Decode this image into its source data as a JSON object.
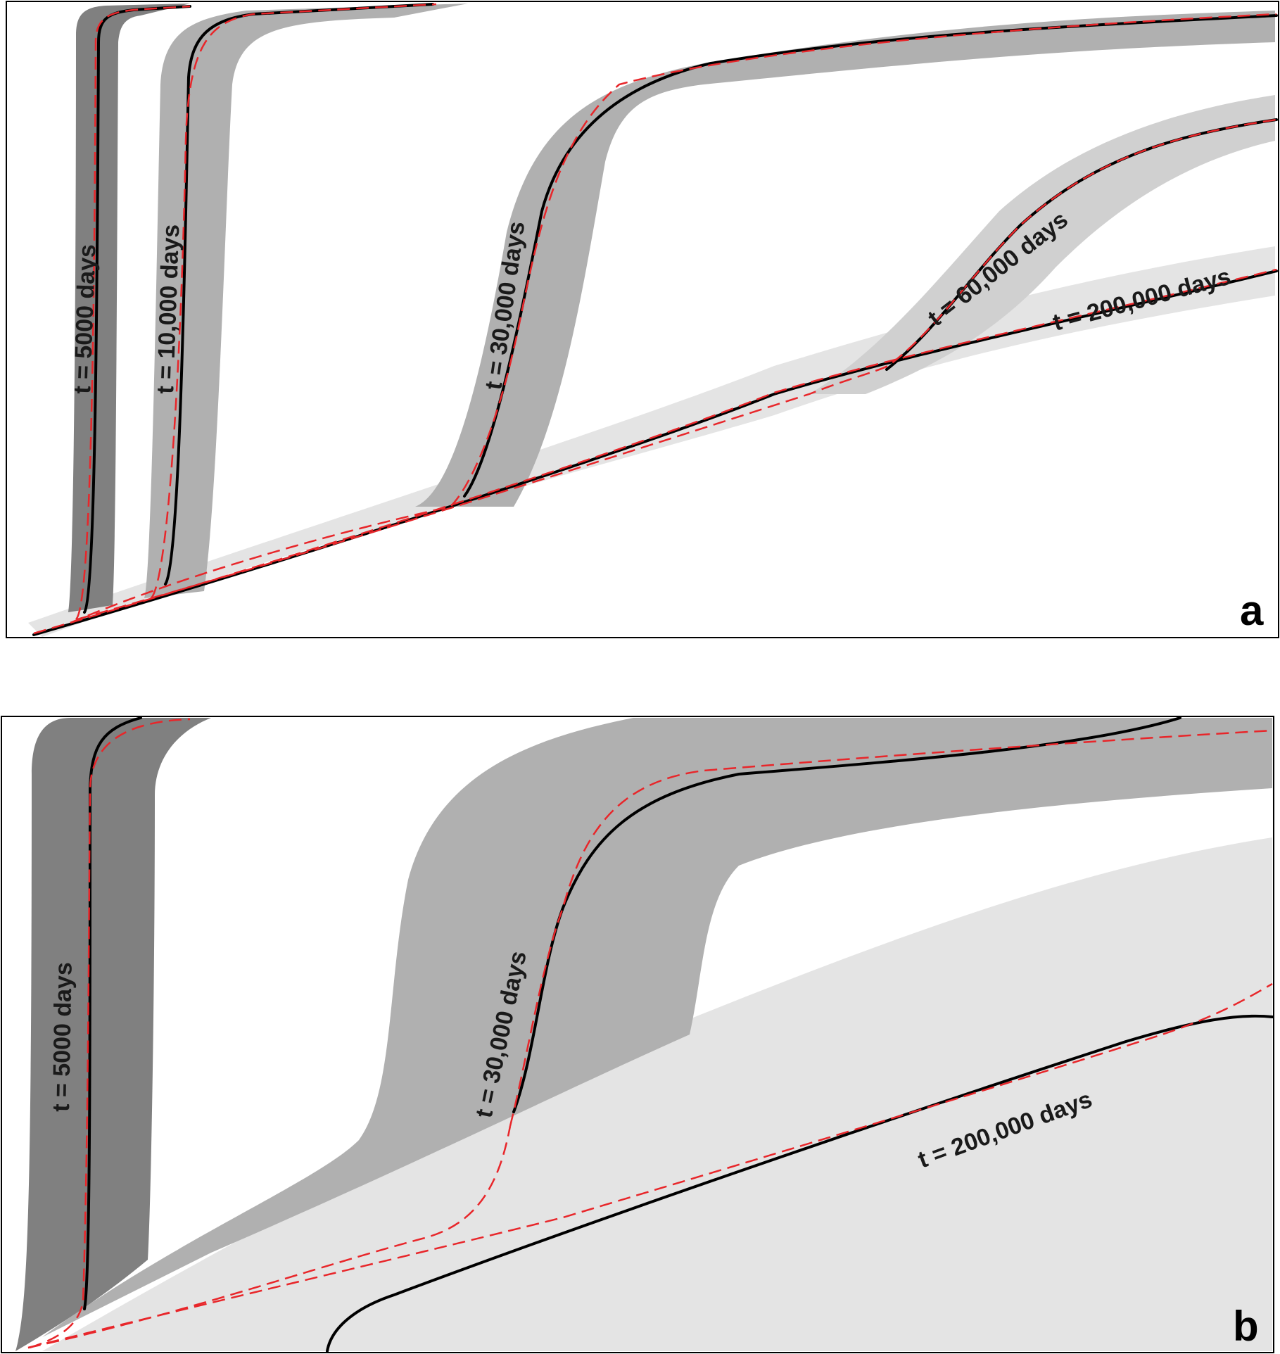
{
  "panels": {
    "a": {
      "letter": "a",
      "labels": {
        "t5000": "t = 5000 days",
        "t10000": "t = 10,000 days",
        "t30000": "t = 30,000 days",
        "t60000": "t = 60,000 days",
        "t200000": "t = 200,000 days"
      }
    },
    "b": {
      "letter": "b",
      "labels": {
        "t5000": "t = 5000 days",
        "t30000": "t = 30,000 days",
        "t200000": "t = 200,000 days"
      }
    }
  },
  "colors": {
    "frame": "#000000",
    "band_dark": "#808080",
    "band_mid": "#b0b0b0",
    "band_light": "#d0d0d0",
    "band_lightest": "#e4e4e4",
    "simulated_curve": "#000000",
    "reference_curve_dashed": "#e8262a"
  }
}
